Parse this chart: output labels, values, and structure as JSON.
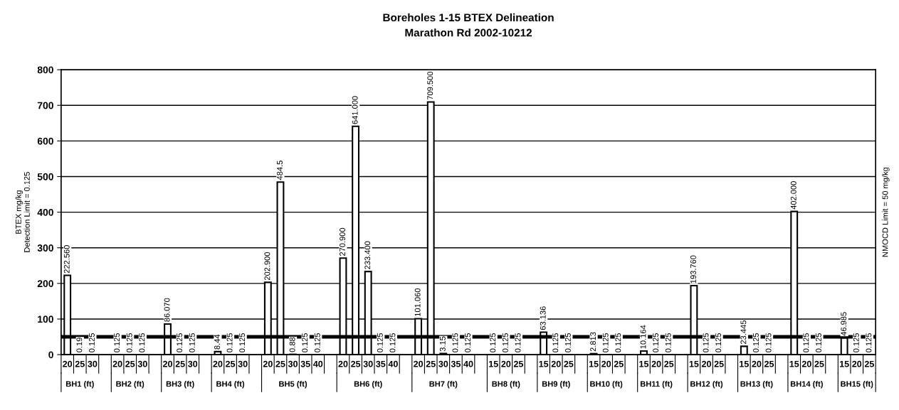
{
  "chart_data": {
    "type": "bar",
    "title": "Boreholes 1-15 BTEX Delineation",
    "subtitle": "Marathon Rd 2002-10212",
    "ylabel": "BTEX mg/kg\nDetection Limit = 0.125",
    "categories": [
      "20",
      "25",
      "30",
      null,
      "20",
      "25",
      "30",
      null,
      "20",
      "25",
      "30",
      null,
      "20",
      "25",
      "30",
      null,
      "20",
      "25",
      "30",
      "35",
      "40",
      null,
      "20",
      "25",
      "30",
      "35",
      "40",
      null,
      "20",
      "25",
      "30",
      "35",
      "40",
      null,
      "15",
      "20",
      "25",
      null,
      "15",
      "20",
      "25",
      null,
      "15",
      "20",
      "25",
      null,
      "15",
      "20",
      "25",
      null,
      "15",
      "20",
      "25",
      null,
      "15",
      "20",
      "25",
      null,
      "15",
      "20",
      "25",
      null,
      "15",
      "20",
      "25"
    ],
    "values": [
      222.56,
      0.19,
      0.125,
      null,
      0.125,
      0.125,
      0.125,
      null,
      86.07,
      0.125,
      0.125,
      null,
      8.44,
      0.125,
      0.125,
      null,
      202.9,
      484.5,
      0.88,
      0.125,
      0.125,
      null,
      270.9,
      641.0,
      233.4,
      0.125,
      0.125,
      null,
      101.06,
      709.5,
      3.15,
      0.125,
      0.125,
      null,
      0.125,
      0.125,
      0.125,
      null,
      63.136,
      0.125,
      0.125,
      null,
      2.813,
      0.125,
      0.125,
      null,
      10.164,
      0.125,
      0.125,
      null,
      193.76,
      0.125,
      0.125,
      null,
      23.445,
      0.125,
      0.125,
      null,
      402.0,
      0.125,
      0.125,
      null,
      46.985,
      0.125,
      0.125
    ],
    "value_labels": [
      "222.560",
      "0.19",
      "0.125",
      null,
      "0.125",
      "0.125",
      "0.125",
      null,
      "86.070",
      "0.125",
      "0.125",
      null,
      "8.44",
      "0.125",
      "0.125",
      null,
      "202.900",
      "484.5",
      "0.88",
      "0.125",
      "0.125",
      null,
      "270.900",
      "641.000",
      "233.400",
      "0.125",
      "0.125",
      null,
      "101.060",
      "709.500",
      "3.15",
      "0.125",
      "0.125",
      null,
      "0.125",
      "0.125",
      "0.125",
      null,
      "63.136",
      "0.125",
      "0.125",
      null,
      "2.813",
      "0.125",
      "0.125",
      null,
      "10.164",
      "0.125",
      "0.125",
      null,
      "193.760",
      "0.125",
      "0.125",
      null,
      "23.445",
      "0.125",
      "0.125",
      null,
      "402.000",
      "0.125",
      "0.125",
      null,
      "46.985",
      "0.125",
      "0.125"
    ],
    "color": "#ffffff",
    "annotations": [
      "BH1 (ft)",
      "BH2 (ft)",
      "BH3 (ft)",
      "BH4 (ft)",
      "BH5 (ft)",
      "BH6 (ft)",
      "BH7 (ft)",
      "BH8 (ft)",
      "BH9 (ft)",
      "BH10 (ft)",
      "BH11 (ft)",
      "BH12 (ft)",
      "BH13 (ft)",
      "BH14 (ft)",
      "BH15 (ft)"
    ],
    "ref_lines": [
      {
        "axis": "y",
        "value": 50,
        "label": "NMOCD Limit = 50 mg/kg",
        "color": "#000000"
      }
    ],
    "ylim": [
      0,
      800
    ],
    "yticks": [
      0,
      100,
      200,
      300,
      400,
      500,
      600,
      700,
      800
    ],
    "grid": "y",
    "legend": false
  }
}
